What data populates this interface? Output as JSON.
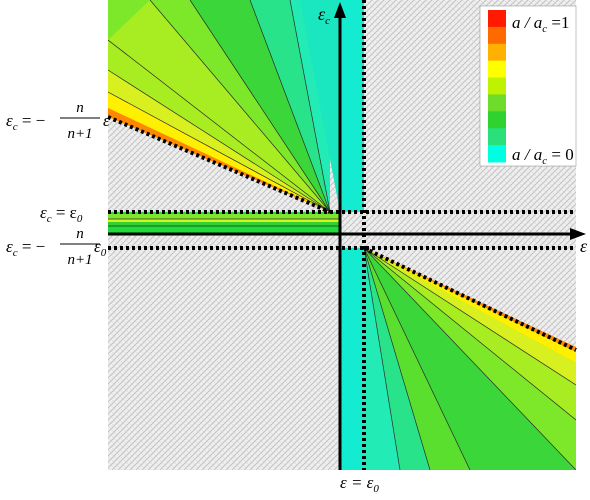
{
  "diagram": {
    "labels": {
      "top_line_prefix": "ε",
      "top_line_sub": "c",
      "top_line_rest": " = −",
      "top_line_num": "n",
      "top_line_den": "n+1",
      "top_line_suffix": "ε",
      "eps0_prefix": "ε",
      "eps0_sub": "c",
      "eps0_rest": " = ε",
      "eps0_sub2": "0",
      "low_prefix": "ε",
      "low_sub": "c",
      "low_rest": " = −",
      "low_num": "n",
      "low_den": "n+1",
      "low_suffix": "ε",
      "low_suffix_sub": "0",
      "bottom_prefix": "ε = ε",
      "bottom_sub": "0",
      "y_axis": "ε",
      "y_axis_sub": "c",
      "x_axis": "ε"
    },
    "legend": {
      "top_label": "a / a",
      "top_sub": "c",
      "top_rest": " =1",
      "bottom_label": "a / a",
      "bottom_sub": "c",
      "bottom_rest": " = 0",
      "colors": [
        "#ff1a00",
        "#ff6a00",
        "#ffb000",
        "#ffff00",
        "#bff200",
        "#6edc2a",
        "#2fd22f",
        "#2ae07a",
        "#00ffe0"
      ]
    },
    "palette": {
      "hatch": "#c9c9c9",
      "hatch_bg": "#efefef",
      "green_a": "#5adf2e",
      "green_b": "#17e00f",
      "cyan": "#14ecd1",
      "band_yellow": "#ffef00",
      "band_orange": "#ff8800"
    }
  }
}
